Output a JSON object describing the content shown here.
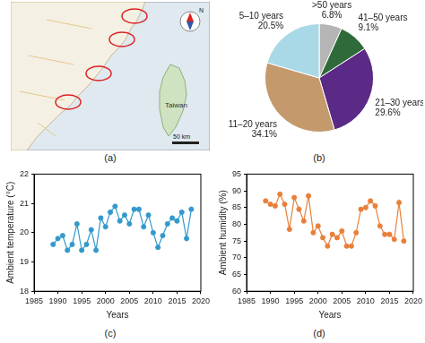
{
  "chart_data": [
    {
      "type": "pie",
      "categories": [
        ">50 years",
        "41–50 years",
        "21–30 years",
        "11–20 years",
        "5–10 years"
      ],
      "values": [
        6.8,
        9.1,
        29.6,
        34.1,
        20.5
      ],
      "value_labels": [
        "6.8%",
        "9.1%",
        "29.6%",
        "34.1%",
        "20.5%"
      ],
      "colors": [
        "#b5b5b5",
        "#2f6b3a",
        "#5b2a86",
        "#c49a6c",
        "#a9d9e6"
      ],
      "data_labels": true
    },
    {
      "type": "line",
      "x": [
        1989,
        1990,
        1991,
        1992,
        1993,
        1994,
        1995,
        1996,
        1997,
        1998,
        1999,
        2000,
        2001,
        2002,
        2003,
        2004,
        2005,
        2006,
        2007,
        2008,
        2009,
        2010,
        2011,
        2012,
        2013,
        2014,
        2015,
        2016,
        2017,
        2018
      ],
      "values": [
        19.6,
        19.8,
        19.9,
        19.4,
        19.6,
        20.3,
        19.4,
        19.6,
        20.1,
        19.4,
        20.5,
        20.2,
        20.7,
        20.9,
        20.4,
        20.6,
        20.3,
        20.8,
        20.8,
        20.2,
        20.6,
        20.0,
        19.5,
        19.9,
        20.3,
        20.5,
        20.4,
        20.7,
        19.8,
        20.8
      ],
      "color": "#3399cc",
      "marker": "circle",
      "line_style": "solid",
      "x_label": "Years",
      "y_label": "Ambient temperature (°C)",
      "xlim": [
        1985,
        2020
      ],
      "xticks": [
        1985,
        1990,
        1995,
        2000,
        2005,
        2010,
        2015,
        2020
      ],
      "ylim": [
        18,
        22
      ],
      "yticks": [
        18,
        19,
        20,
        21,
        22
      ],
      "grid": false
    },
    {
      "type": "line",
      "x": [
        1989,
        1990,
        1991,
        1992,
        1993,
        1994,
        1995,
        1996,
        1997,
        1998,
        1999,
        2000,
        2001,
        2002,
        2003,
        2004,
        2005,
        2006,
        2007,
        2008,
        2009,
        2010,
        2011,
        2012,
        2013,
        2014,
        2015,
        2016,
        2017,
        2018
      ],
      "values": [
        87,
        86,
        85.5,
        89,
        86,
        78.5,
        88,
        84.5,
        81,
        88.5,
        77.5,
        79.5,
        76,
        73.5,
        77,
        76,
        78,
        73.5,
        73.5,
        77.5,
        84.5,
        85,
        87,
        85.5,
        79.5,
        77,
        77,
        75.5,
        86.5,
        75
      ],
      "color": "#e8803a",
      "marker": "circle",
      "line_style": "solid",
      "x_label": "Years",
      "y_label": "Ambient humidity (%)",
      "xlim": [
        1985,
        2020
      ],
      "xticks": [
        1985,
        1990,
        1995,
        2000,
        2005,
        2010,
        2015,
        2020
      ],
      "ylim": [
        60,
        95
      ],
      "yticks": [
        60,
        65,
        70,
        75,
        80,
        85,
        90,
        95
      ],
      "grid": false
    }
  ],
  "map": {
    "labels": [
      "Taiwan"
    ],
    "scale_bar": "50 km",
    "north": "N"
  },
  "panel_labels": [
    "(a)",
    "(b)",
    "(c)",
    "(d)"
  ]
}
